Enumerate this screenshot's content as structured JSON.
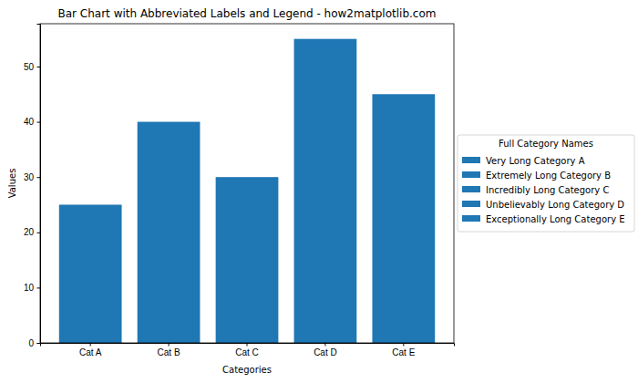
{
  "chart_data": {
    "type": "bar",
    "title": "Bar Chart with Abbreviated Labels and Legend - how2matplotlib.com",
    "x_label": "Categories",
    "y_label": "Values",
    "categories": [
      "Cat A",
      "Cat B",
      "Cat C",
      "Cat D",
      "Cat E"
    ],
    "values": [
      25,
      40,
      30,
      55,
      45
    ],
    "color": "#1f77b4",
    "ylim": [
      0,
      57.75
    ],
    "yticks": [
      0,
      10,
      20,
      30,
      40,
      50
    ],
    "grid": false,
    "legend": "right",
    "legend_title": "Full Category Names",
    "legend_labels": [
      "Very Long Category A",
      "Extremely Long Category B",
      "Incredibly Long Category C",
      "Unbelievably Long Category D",
      "Exceptionally Long Category E"
    ]
  }
}
